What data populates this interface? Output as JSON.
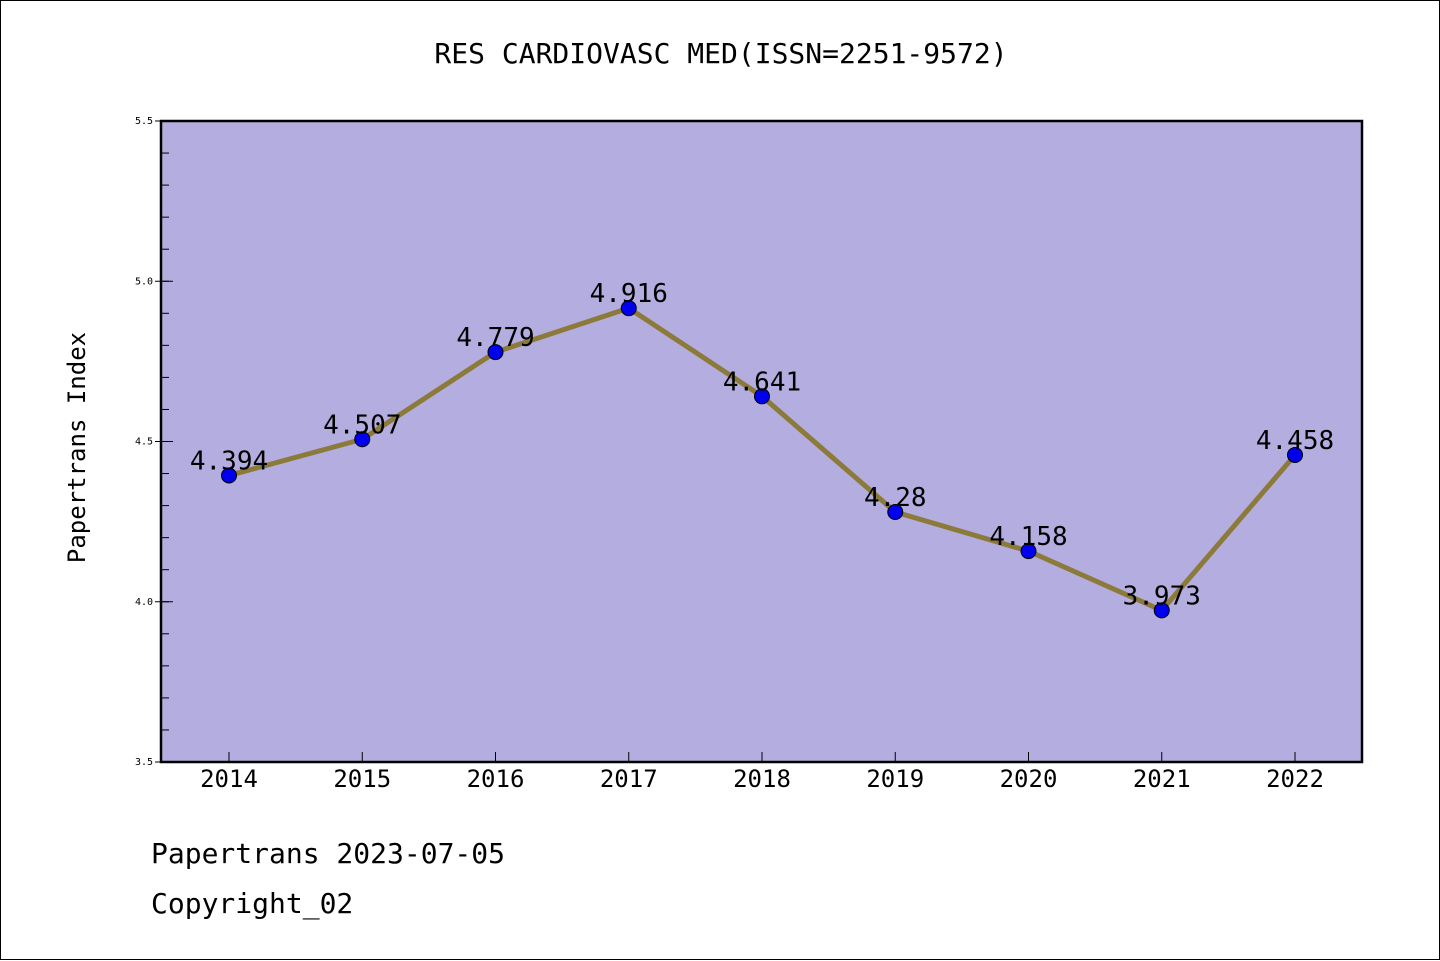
{
  "colors": {
    "plot_background": "#b4aee0",
    "line": "#8c7a3a",
    "marker": "#0000ee",
    "frame": "#000000"
  },
  "chart_data": {
    "type": "line",
    "title": "RES CARDIOVASC MED(ISSN=2251-9572)",
    "xlabel": "",
    "ylabel": "Papertrans Index",
    "categories": [
      "2014",
      "2015",
      "2016",
      "2017",
      "2018",
      "2019",
      "2020",
      "2021",
      "2022"
    ],
    "series": [
      {
        "values": [
          4.394,
          4.507,
          4.779,
          4.916,
          4.641,
          4.28,
          4.158,
          3.973,
          4.458
        ],
        "labels": [
          "4.394",
          "4.507",
          "4.779",
          "4.916",
          "4.641",
          "4.28",
          "4.158",
          "3.973",
          "4.458"
        ]
      }
    ],
    "ylim": [
      3.5,
      5.5
    ],
    "yticks": [
      "3.5",
      "4.0",
      "4.5",
      "5.0",
      "5.5"
    ],
    "grid": false,
    "legend": "none"
  },
  "footer": {
    "line1": "Papertrans 2023-07-05",
    "line2": "Copyright_02"
  }
}
